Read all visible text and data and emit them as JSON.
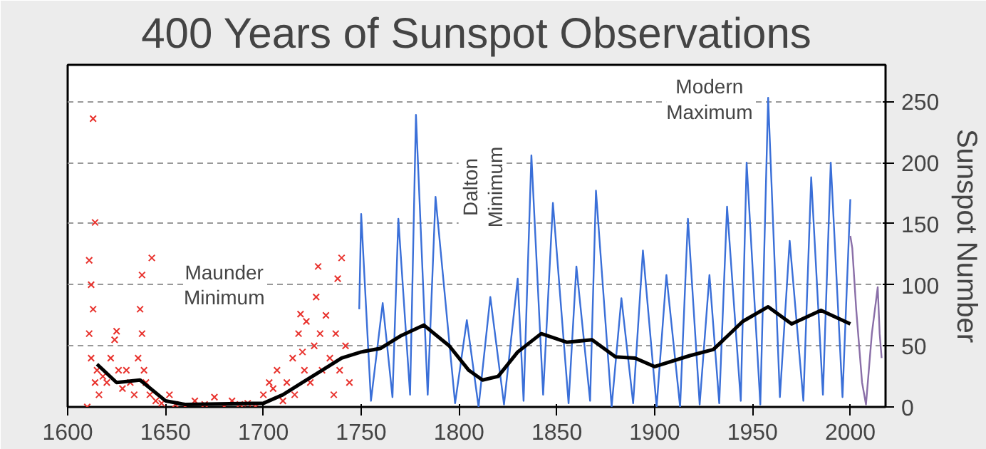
{
  "chart_data": {
    "type": "line",
    "title": "400 Years of Sunspot Observations",
    "ylabel": "Sunspot Number",
    "xlim": [
      1600,
      2018
    ],
    "ylim": [
      0,
      280
    ],
    "xticks": [
      1600,
      1650,
      1700,
      1750,
      1800,
      1850,
      1900,
      1950,
      2000
    ],
    "yticks": [
      0,
      50,
      100,
      150,
      200,
      250
    ],
    "grid": "y",
    "annotations": [
      "Maunder\nMinimum",
      "Dalton\nMinimum",
      "Modern\nMaximum"
    ],
    "series": [
      {
        "type": "scatter",
        "marker": "cross",
        "color": "#e8322d",
        "x": [
          1610,
          1611,
          1611,
          1612,
          1612,
          1613,
          1613,
          1614,
          1614,
          1615,
          1616,
          1618,
          1620,
          1622,
          1624,
          1625,
          1626,
          1628,
          1630,
          1632,
          1634,
          1636,
          1637,
          1638,
          1638,
          1639,
          1640,
          1642,
          1643,
          1645,
          1648,
          1652,
          1655,
          1660,
          1665,
          1670,
          1675,
          1680,
          1684,
          1688,
          1692,
          1696,
          1700,
          1703,
          1705,
          1707,
          1710,
          1712,
          1715,
          1716,
          1718,
          1719,
          1720,
          1721,
          1722,
          1724,
          1726,
          1727,
          1728,
          1729,
          1730,
          1732,
          1734,
          1736,
          1737,
          1738,
          1739,
          1740,
          1742,
          1744
        ],
        "values": [
          0,
          60,
          120,
          100,
          40,
          236,
          80,
          151,
          20,
          30,
          10,
          25,
          20,
          40,
          55,
          62,
          30,
          15,
          30,
          20,
          10,
          40,
          80,
          108,
          60,
          30,
          20,
          10,
          122,
          5,
          3,
          10,
          2,
          0,
          5,
          2,
          8,
          0,
          5,
          2,
          3,
          0,
          10,
          20,
          15,
          30,
          5,
          20,
          40,
          10,
          60,
          76,
          45,
          30,
          70,
          20,
          50,
          90,
          115,
          60,
          30,
          75,
          40,
          10,
          60,
          105,
          30,
          122,
          50,
          20
        ]
      },
      {
        "color": "#3a6fd8",
        "x": [
          1749,
          1750,
          1755,
          1761,
          1766,
          1769,
          1775,
          1778,
          1784,
          1788,
          1798,
          1804,
          1810,
          1816,
          1823,
          1830,
          1833,
          1837,
          1843,
          1848,
          1856,
          1860,
          1867,
          1870,
          1878,
          1883,
          1889,
          1894,
          1901,
          1906,
          1913,
          1917,
          1923,
          1928,
          1933,
          1937,
          1944,
          1947,
          1954,
          1958,
          1964,
          1969,
          1976,
          1980,
          1986,
          1990,
          1996,
          2000
        ],
        "values": [
          80,
          158,
          5,
          85,
          8,
          154,
          10,
          239,
          10,
          172,
          3,
          71,
          0,
          90,
          2,
          105,
          5,
          206,
          10,
          167,
          3,
          115,
          5,
          177,
          0,
          89,
          3,
          128,
          0,
          108,
          0,
          154,
          2,
          108,
          3,
          164,
          5,
          200,
          2,
          253,
          8,
          136,
          5,
          188,
          10,
          200,
          8,
          170
        ]
      },
      {
        "color": "#8a6fa8",
        "x": [
          2000,
          2001,
          2003,
          2006,
          2008,
          2011,
          2014,
          2015,
          2016
        ],
        "values": [
          140,
          130,
          80,
          20,
          2,
          60,
          98,
          60,
          40
        ]
      },
      {
        "color": "#000000",
        "x": [
          1615,
          1625,
          1637,
          1650,
          1660,
          1700,
          1710,
          1720,
          1730,
          1740,
          1750,
          1760,
          1770,
          1782,
          1795,
          1805,
          1812,
          1820,
          1830,
          1842,
          1855,
          1868,
          1880,
          1890,
          1900,
          1918,
          1930,
          1945,
          1958,
          1970,
          1985,
          2000
        ],
        "values": [
          35,
          20,
          22,
          5,
          2,
          3,
          10,
          20,
          30,
          40,
          45,
          48,
          58,
          67,
          50,
          30,
          22,
          25,
          45,
          60,
          53,
          55,
          41,
          40,
          33,
          42,
          47,
          70,
          82,
          68,
          79,
          68
        ]
      }
    ]
  }
}
